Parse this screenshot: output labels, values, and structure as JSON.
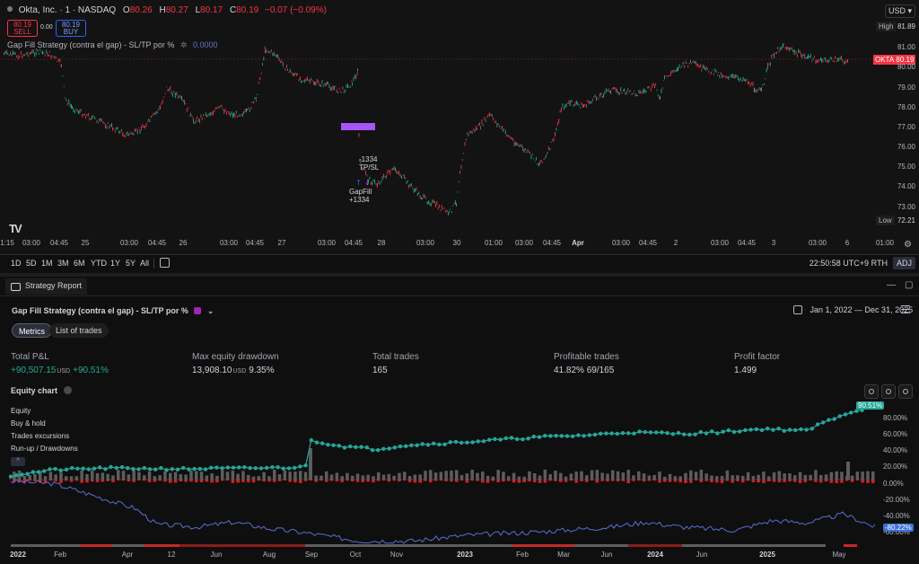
{
  "symbol": {
    "title": "Okta, Inc. · 1 · NASDAQ",
    "ohlc": [
      {
        "label": "O",
        "value": "80.26"
      },
      {
        "label": "H",
        "value": "80.27"
      },
      {
        "label": "L",
        "value": "80.17"
      },
      {
        "label": "C",
        "value": "80.19"
      }
    ],
    "change": "−0.07 (−0.09%)",
    "sell_price": "80.19",
    "sell_label": "SELL",
    "buy_price": "80.19",
    "buy_label": "BUY",
    "spread": "0.00"
  },
  "strategy_legend": {
    "name": "Gap Fill Strategy (contra el gap) - SL/TP por %",
    "value": "0.0000"
  },
  "price_axis": {
    "currency": "USD",
    "high_label": "High",
    "high_value": "81.89",
    "low_label": "Low",
    "low_value": "72.21",
    "ticker_tag": "OKTA",
    "ticker_price": "80.19",
    "ticks": [
      {
        "value": "81.00",
        "y": 48
      },
      {
        "value": "80.00",
        "y": 70
      },
      {
        "value": "79.00",
        "y": 93
      },
      {
        "value": "78.00",
        "y": 115
      },
      {
        "value": "77.00",
        "y": 137
      },
      {
        "value": "76.00",
        "y": 159
      },
      {
        "value": "75.00",
        "y": 181
      },
      {
        "value": "74.00",
        "y": 203
      },
      {
        "value": "73.00",
        "y": 226
      }
    ]
  },
  "chart_annotations": {
    "trade_exit_value": "-1334",
    "trade_exit_label": "TP/SL",
    "trade_entry_label": "GapFill",
    "trade_entry_value": "+1334"
  },
  "time_axis": [
    {
      "label": "1:15",
      "x": 8,
      "bold": false
    },
    {
      "label": "03:00",
      "x": 35,
      "bold": false
    },
    {
      "label": "04:45",
      "x": 66,
      "bold": false
    },
    {
      "label": "25",
      "x": 95,
      "bold": false
    },
    {
      "label": "03:00",
      "x": 144,
      "bold": false
    },
    {
      "label": "04:45",
      "x": 175,
      "bold": false
    },
    {
      "label": "26",
      "x": 204,
      "bold": false
    },
    {
      "label": "03:00",
      "x": 255,
      "bold": false
    },
    {
      "label": "04:45",
      "x": 284,
      "bold": false
    },
    {
      "label": "27",
      "x": 314,
      "bold": false
    },
    {
      "label": "03:00",
      "x": 364,
      "bold": false
    },
    {
      "label": "04:45",
      "x": 394,
      "bold": false
    },
    {
      "label": "28",
      "x": 425,
      "bold": false
    },
    {
      "label": "03:00",
      "x": 474,
      "bold": false
    },
    {
      "label": "30",
      "x": 509,
      "bold": false
    },
    {
      "label": "01:00",
      "x": 550,
      "bold": false
    },
    {
      "label": "03:00",
      "x": 584,
      "bold": false
    },
    {
      "label": "04:45",
      "x": 615,
      "bold": false
    },
    {
      "label": "Apr",
      "x": 644,
      "bold": true
    },
    {
      "label": "03:00",
      "x": 692,
      "bold": false
    },
    {
      "label": "04:45",
      "x": 722,
      "bold": false
    },
    {
      "label": "2",
      "x": 753,
      "bold": false
    },
    {
      "label": "03:00",
      "x": 802,
      "bold": false
    },
    {
      "label": "04:45",
      "x": 832,
      "bold": false
    },
    {
      "label": "3",
      "x": 862,
      "bold": false
    },
    {
      "label": "03:00",
      "x": 911,
      "bold": false
    },
    {
      "label": "6",
      "x": 944,
      "bold": false
    },
    {
      "label": "01:00",
      "x": 986,
      "bold": false
    }
  ],
  "range_bar": {
    "buttons": [
      "1D",
      "5D",
      "1M",
      "3M",
      "6M",
      "YTD",
      "1Y",
      "5Y",
      "All"
    ],
    "time": "22:50:58 UTC+9",
    "rth": "RTH",
    "adj": "ADJ"
  },
  "report": {
    "tab_label": "Strategy Report",
    "strategy_title": "Gap Fill Strategy (contra el gap) - SL/TP por %",
    "date_range": "Jan 1, 2022 — Dec 31, 2025",
    "pills": [
      "Metrics",
      "List of trades"
    ],
    "metrics": {
      "total_pnl_label": "Total P&L",
      "total_pnl_value": "+90,507.15",
      "total_pnl_unit": "USD",
      "total_pnl_pct": "+90.51%",
      "max_dd_label": "Max equity drawdown",
      "max_dd_value": "13,908.10",
      "max_dd_unit": "USD",
      "max_dd_pct": "9.35%",
      "total_trades_label": "Total trades",
      "total_trades_value": "165",
      "profitable_label": "Profitable trades",
      "profitable_value": "41.82%  69/165",
      "profit_factor_label": "Profit factor",
      "profit_factor_value": "1.499"
    },
    "equity_chart_title": "Equity chart",
    "legend": [
      "Equity",
      "Buy & hold",
      "Trades excursions",
      "Run-up / Drawdowns"
    ],
    "legend_toggle": "^",
    "equity_badge": "90.51%",
    "bh_badge": "-80.22%",
    "pct_ticks": [
      {
        "label": "80.00%",
        "y": 461
      },
      {
        "label": "60.00%",
        "y": 479
      },
      {
        "label": "40.00%",
        "y": 497
      },
      {
        "label": "20.00%",
        "y": 515
      },
      {
        "label": "0.00%",
        "y": 534
      },
      {
        "label": "-20.00%",
        "y": 552
      },
      {
        "label": "-40.00%",
        "y": 570
      },
      {
        "label": "-60.00%",
        "y": 588
      }
    ],
    "x_ticks": [
      {
        "label": "2022",
        "x": 20,
        "bold": true
      },
      {
        "label": "Feb",
        "x": 67,
        "bold": false
      },
      {
        "label": "Apr",
        "x": 142,
        "bold": false
      },
      {
        "label": "12",
        "x": 191,
        "bold": false
      },
      {
        "label": "Jun",
        "x": 241,
        "bold": false
      },
      {
        "label": "Aug",
        "x": 300,
        "bold": false
      },
      {
        "label": "Sep",
        "x": 347,
        "bold": false
      },
      {
        "label": "Oct",
        "x": 396,
        "bold": false
      },
      {
        "label": "Nov",
        "x": 442,
        "bold": false
      },
      {
        "label": "2023",
        "x": 518,
        "bold": true
      },
      {
        "label": "Feb",
        "x": 582,
        "bold": false
      },
      {
        "label": "Mar",
        "x": 628,
        "bold": false
      },
      {
        "label": "Jun",
        "x": 676,
        "bold": false
      },
      {
        "label": "2024",
        "x": 730,
        "bold": true
      },
      {
        "label": "Jun",
        "x": 782,
        "bold": false
      },
      {
        "label": "2025",
        "x": 855,
        "bold": true
      },
      {
        "label": "May",
        "x": 935,
        "bold": false
      }
    ]
  },
  "colors": {
    "equity": "#26a69a",
    "bh_line": "#5b6dd6",
    "bar_grey": "#5d5d5d",
    "bar_red": "#c62828",
    "purple_marker": "#a855f7",
    "up": "#22ab94",
    "down": "#f23645"
  }
}
